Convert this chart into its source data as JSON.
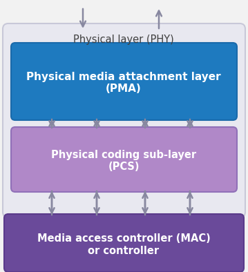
{
  "bg_color": "#f2f2f2",
  "outer_box_facecolor": "#e8e8f0",
  "outer_box_edgecolor": "#c8c8d8",
  "pma_color": "#1e7abf",
  "pma_edge": "#1a6aaa",
  "pcs_color": "#b088c8",
  "pcs_edge": "#9870b8",
  "mac_color": "#6a4a9a",
  "mac_edge": "#5a3a8a",
  "text_white": "#ffffff",
  "text_dark": "#404040",
  "arrow_color": "#8888a0",
  "phy_label": "Physical layer (PHY)",
  "pma_line1": "Physical media attachment layer",
  "pma_line2": "(PMA)",
  "pcs_line1": "Physical coding sub-layer",
  "pcs_line2": "(PCS)",
  "mac_line1": "Media access controller (MAC)",
  "mac_line2": "or controller",
  "fig_width": 3.59,
  "fig_height": 3.94,
  "dpi": 100
}
